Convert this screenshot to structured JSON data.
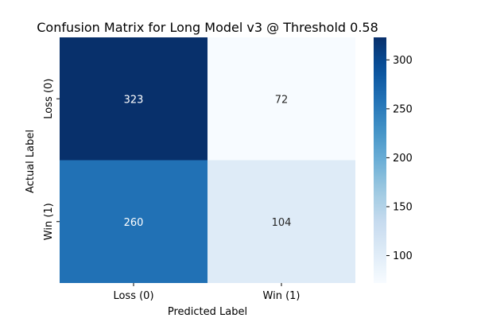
{
  "chart_data": {
    "type": "heatmap",
    "title": "Confusion Matrix for Long Model v3 @ Threshold 0.58",
    "xlabel": "Predicted Label",
    "ylabel": "Actual Label",
    "x_categories": [
      "Loss (0)",
      "Win (1)"
    ],
    "y_categories": [
      "Loss (0)",
      "Win (1)"
    ],
    "values": [
      [
        323,
        72
      ],
      [
        260,
        104
      ]
    ],
    "colormap": "Blues",
    "color_range": [
      72,
      323
    ],
    "colorbar_ticks": [
      100,
      150,
      200,
      250,
      300
    ],
    "colors": {
      "low": "#f7fbff",
      "high": "#08306b"
    }
  }
}
